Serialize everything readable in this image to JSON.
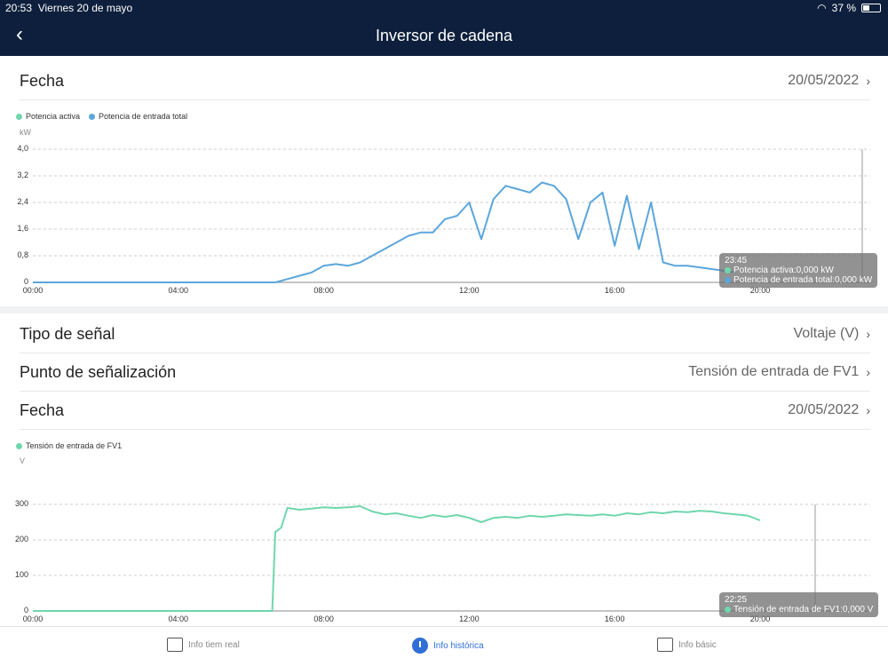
{
  "status": {
    "time": "20:53",
    "date": "Viernes 20 de mayo",
    "battery": "37 %"
  },
  "header": {
    "title": "Inversor de cadena"
  },
  "top_date_row": {
    "label": "Fecha",
    "value": "20/05/2022"
  },
  "chart1_legend": [
    {
      "label": "Potencia activa",
      "color": "#6fd6ad"
    },
    {
      "label": "Potencia de entrada total",
      "color": "#5ba6dc"
    }
  ],
  "chart1_tooltip": {
    "time": "23:45",
    "line1": "Potencia activa:0,000 kW",
    "line2": "Potencia de entrada total:0,000 kW"
  },
  "filter_rows": {
    "signal_type": {
      "label": "Tipo de señal",
      "value": "Voltaje (V)"
    },
    "signal_point": {
      "label": "Punto de señalización",
      "value": "Tensión de entrada de FV1"
    },
    "date": {
      "label": "Fecha",
      "value": "20/05/2022"
    }
  },
  "chart2_legend": [
    {
      "label": "Tensión de entrada de FV1",
      "color": "#6fd6ad"
    }
  ],
  "chart2_tooltip": {
    "time": "22:25",
    "line1": "Tensión de entrada de FV1:0,000 V"
  },
  "tabs": [
    {
      "label": "Info tiem real",
      "active": false,
      "icon": "chat-icon"
    },
    {
      "label": "Info histórica",
      "active": true,
      "icon": "clock-icon"
    },
    {
      "label": "Info básic",
      "active": false,
      "icon": "device-icon"
    }
  ],
  "chart_data": [
    {
      "type": "line",
      "ylabel": "kW",
      "ylim": [
        0,
        4.0
      ],
      "yticks": [
        "0",
        "0,8",
        "1,6",
        "2,4",
        "3,2",
        "4,0"
      ],
      "xticks": [
        "00:00",
        "04:00",
        "08:00",
        "12:00",
        "16:00",
        "20:00"
      ],
      "grid": true,
      "x": [
        "00:00",
        "06:40",
        "07:00",
        "07:20",
        "07:40",
        "08:00",
        "08:20",
        "08:40",
        "09:00",
        "09:20",
        "09:40",
        "10:00",
        "10:20",
        "10:40",
        "11:00",
        "11:20",
        "11:40",
        "12:00",
        "12:20",
        "12:40",
        "13:00",
        "13:20",
        "13:40",
        "14:00",
        "14:20",
        "14:40",
        "15:00",
        "15:20",
        "15:40",
        "16:00",
        "16:20",
        "16:40",
        "17:00",
        "17:20",
        "17:40",
        "18:00",
        "18:20",
        "18:40",
        "19:00",
        "19:20"
      ],
      "series": [
        {
          "name": "Potencia de entrada total",
          "color": "#5ba6dc",
          "values": [
            0,
            0,
            0.1,
            0.2,
            0.3,
            0.5,
            0.55,
            0.5,
            0.6,
            0.8,
            1.0,
            1.2,
            1.4,
            1.5,
            1.5,
            1.9,
            2.0,
            2.4,
            1.3,
            2.5,
            2.9,
            2.8,
            2.7,
            3.0,
            2.9,
            2.5,
            1.3,
            2.4,
            2.7,
            1.1,
            2.6,
            1.0,
            2.4,
            0.6,
            0.5,
            0.5,
            0.45,
            0.4,
            0.35,
            0.3
          ]
        }
      ]
    },
    {
      "type": "line",
      "ylabel": "V",
      "ylim": [
        0,
        300
      ],
      "yticks": [
        "0",
        "100",
        "200",
        "300"
      ],
      "xticks": [
        "00:00",
        "04:00",
        "08:00",
        "12:00",
        "16:00",
        "20:00"
      ],
      "grid": true,
      "x": [
        "00:00",
        "06:35",
        "06:40",
        "06:50",
        "07:00",
        "07:20",
        "07:40",
        "08:00",
        "08:20",
        "08:40",
        "09:00",
        "09:20",
        "09:40",
        "10:00",
        "10:20",
        "10:40",
        "11:00",
        "11:20",
        "11:40",
        "12:00",
        "12:20",
        "12:40",
        "13:00",
        "13:20",
        "13:40",
        "14:00",
        "14:20",
        "14:40",
        "15:00",
        "15:20",
        "15:40",
        "16:00",
        "16:20",
        "16:40",
        "17:00",
        "17:20",
        "17:40",
        "18:00",
        "18:20",
        "18:40",
        "19:00",
        "19:20",
        "19:40",
        "20:00"
      ],
      "series": [
        {
          "name": "Tensión de entrada de FV1",
          "color": "#6fd6ad",
          "values": [
            0,
            0,
            222,
            235,
            290,
            285,
            288,
            292,
            290,
            292,
            295,
            280,
            272,
            275,
            268,
            262,
            270,
            265,
            270,
            262,
            250,
            262,
            265,
            262,
            268,
            265,
            268,
            272,
            270,
            268,
            272,
            268,
            275,
            272,
            278,
            275,
            280,
            278,
            282,
            280,
            275,
            272,
            268,
            255
          ]
        }
      ]
    }
  ]
}
